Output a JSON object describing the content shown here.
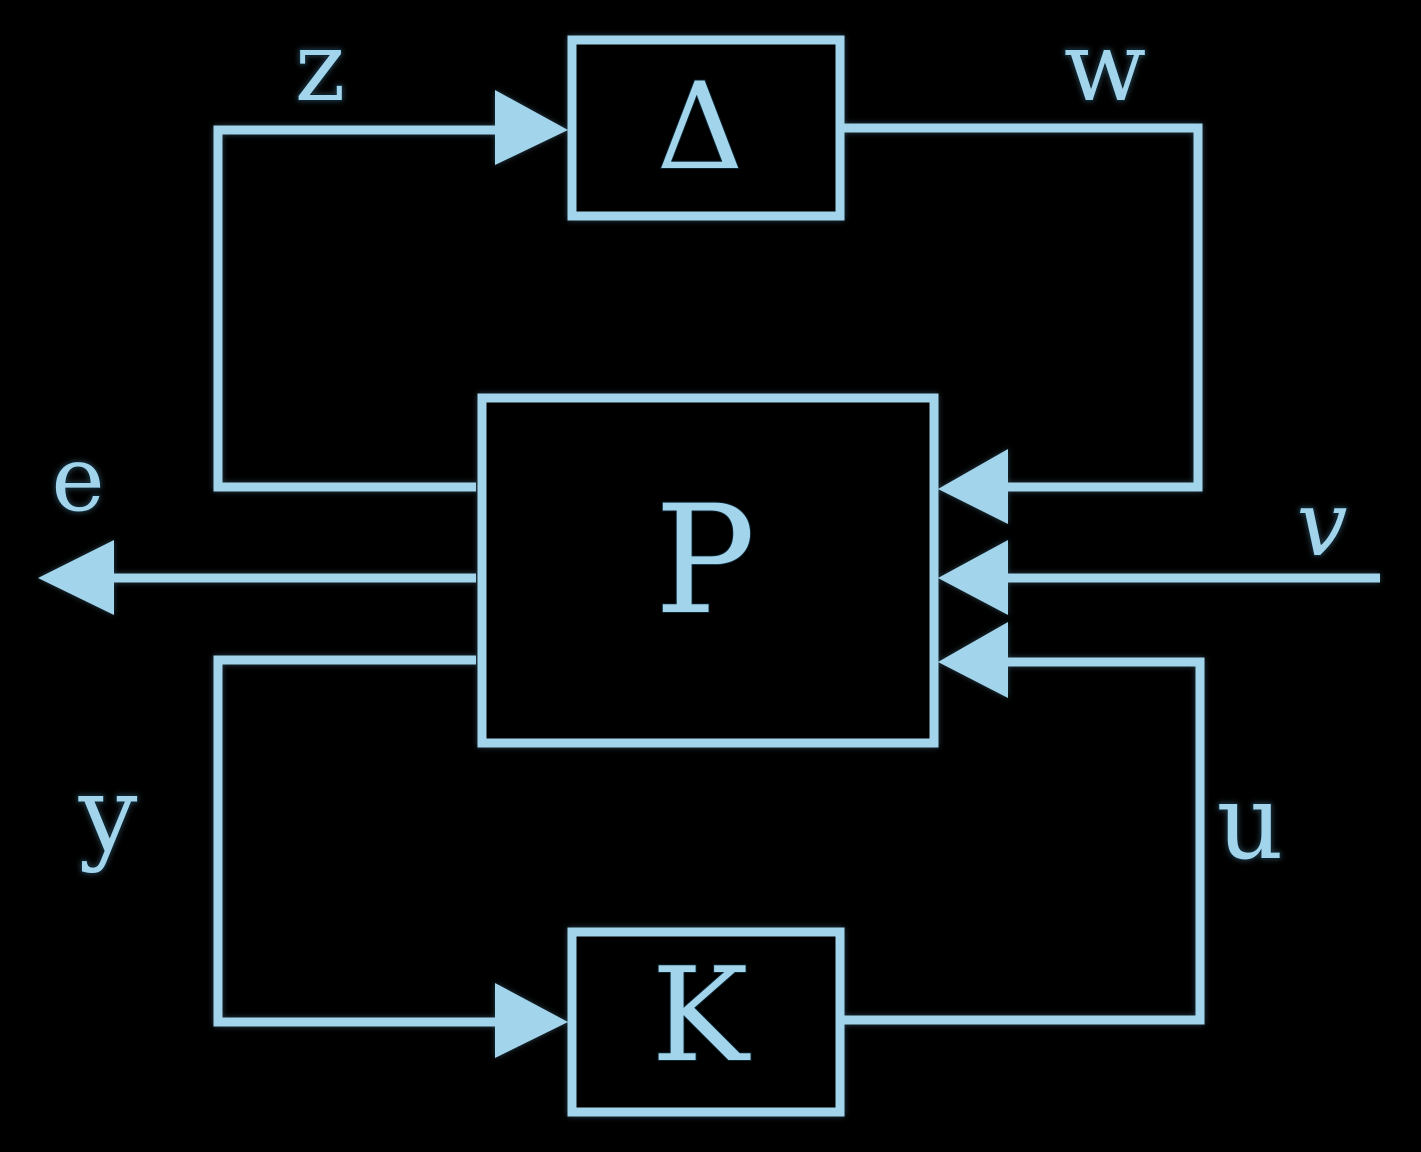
{
  "colors": {
    "background": "#000000",
    "line": "#a2d4ec",
    "text": "#a2d4ec"
  },
  "blocks": {
    "delta": {
      "label": "Δ"
    },
    "plant": {
      "label": "P"
    },
    "controller": {
      "label": "K"
    }
  },
  "signals": {
    "z": "z",
    "w": "w",
    "e": "e",
    "v": "v",
    "y": "y",
    "u": "u"
  }
}
